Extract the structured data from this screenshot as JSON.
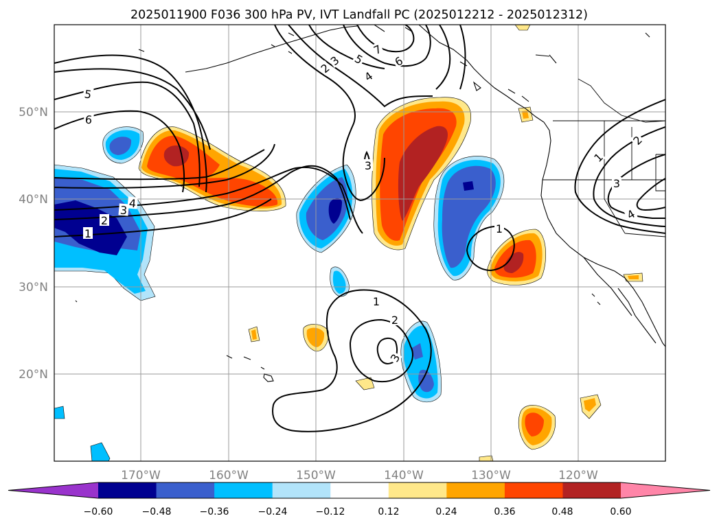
{
  "title": "2025011900 F036 300 hPa PV, IVT Landfall PC (2025012212 - 2025012312)",
  "lon_labels": [
    "170°W",
    "160°W",
    "150°W",
    "140°W",
    "130°W",
    "120°W"
  ],
  "lat_labels": [
    "50°N",
    "40°N",
    "30°N",
    "20°N"
  ],
  "colorbar": {
    "ticks": [
      "−0.60",
      "−0.48",
      "−0.36",
      "−0.24",
      "−0.12",
      "0.12",
      "0.24",
      "0.36",
      "0.48",
      "0.60"
    ],
    "colors": [
      "#9933cc",
      "#000090",
      "#3a5fcd",
      "#00bfff",
      "#b2e4fa",
      "#ffffff",
      "#ffe88a",
      "#ffa500",
      "#ff4500",
      "#b22222",
      "#ff85a8"
    ]
  },
  "contour_labels": [
    "7",
    "6",
    "5",
    "4",
    "3",
    "2",
    "5",
    "6",
    "4",
    "3",
    "2",
    "1",
    "3",
    "1",
    "1",
    "2",
    "3",
    "1",
    "2",
    "3",
    "4"
  ]
}
